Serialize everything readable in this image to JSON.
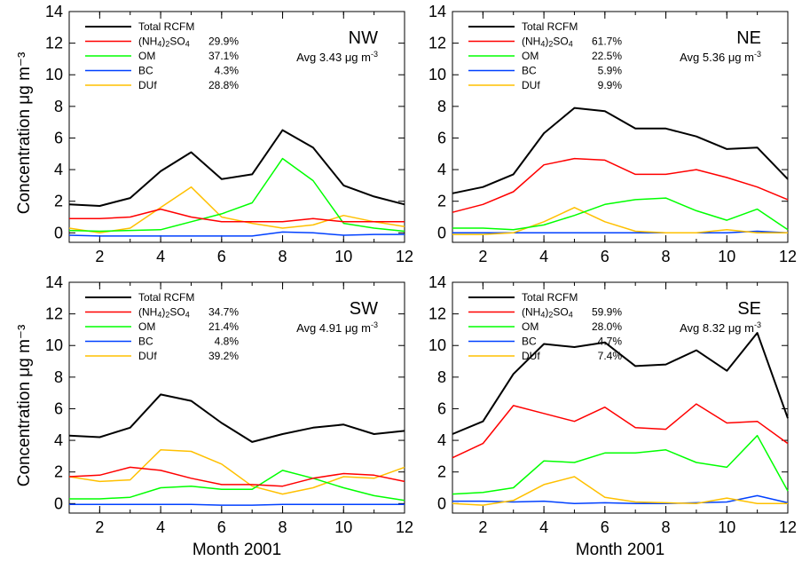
{
  "chart_data": {
    "type": "line",
    "ylabel": "Concentration μg m⁻³",
    "xlabel": "Month 2001",
    "xlim": [
      1,
      12
    ],
    "ylim": [
      0,
      14
    ],
    "x": [
      1,
      2,
      3,
      4,
      5,
      6,
      7,
      8,
      9,
      10,
      11,
      12
    ],
    "xticks": [
      "2",
      "4",
      "6",
      "8",
      "10",
      "12"
    ],
    "yticks": [
      "0",
      "2",
      "4",
      "6",
      "8",
      "10",
      "12",
      "14"
    ],
    "grid": false,
    "legend_placement": "top-left",
    "series_styles": [
      {
        "key": "total",
        "color": "#000000"
      },
      {
        "key": "nh4so4",
        "color": "#ff0000"
      },
      {
        "key": "om",
        "color": "#00ff00"
      },
      {
        "key": "bc",
        "color": "#0040ff"
      },
      {
        "key": "duf",
        "color": "#ffc000"
      }
    ],
    "panels": [
      {
        "region": "NW",
        "avg_label": "Avg 3.43 μg m",
        "avg_exp": "-3",
        "legend": [
          {
            "label": "Total RCFM",
            "pct": ""
          },
          {
            "label": "(NH4)2SO4",
            "pct": "29.9%"
          },
          {
            "label": "OM",
            "pct": "37.1%"
          },
          {
            "label": "BC",
            "pct": "4.3%"
          },
          {
            "label": "DUf",
            "pct": "28.8%"
          }
        ],
        "series": {
          "total": [
            1.8,
            1.7,
            2.2,
            3.9,
            5.1,
            3.4,
            3.7,
            6.5,
            5.4,
            3.0,
            2.3,
            1.8
          ],
          "nh4so4": [
            0.9,
            0.9,
            1.0,
            1.5,
            1.0,
            0.7,
            0.7,
            0.7,
            0.9,
            0.7,
            0.7,
            0.7
          ],
          "om": [
            0.15,
            0.1,
            0.15,
            0.2,
            0.7,
            1.2,
            1.9,
            4.7,
            3.3,
            0.6,
            0.3,
            0.1
          ],
          "bc": [
            -0.15,
            -0.2,
            -0.2,
            -0.2,
            -0.2,
            -0.2,
            -0.2,
            0.05,
            0.0,
            -0.15,
            -0.1,
            -0.1
          ],
          "duf": [
            0.3,
            0.0,
            0.3,
            1.6,
            2.9,
            1.0,
            0.6,
            0.3,
            0.5,
            1.1,
            0.7,
            0.4
          ]
        }
      },
      {
        "region": "NE",
        "avg_label": "Avg 5.36 μg m",
        "avg_exp": "-3",
        "legend": [
          {
            "label": "Total RCFM",
            "pct": ""
          },
          {
            "label": "(NH4)2SO4",
            "pct": "61.7%"
          },
          {
            "label": "OM",
            "pct": "22.5%"
          },
          {
            "label": "BC",
            "pct": "5.9%"
          },
          {
            "label": "DUf",
            "pct": "9.9%"
          }
        ],
        "series": {
          "total": [
            2.5,
            2.9,
            3.7,
            6.3,
            7.9,
            7.7,
            6.6,
            6.6,
            6.1,
            5.3,
            5.4,
            3.4
          ],
          "nh4so4": [
            1.3,
            1.8,
            2.6,
            4.3,
            4.7,
            4.6,
            3.7,
            3.7,
            4.0,
            3.5,
            2.9,
            2.1
          ],
          "om": [
            0.3,
            0.3,
            0.2,
            0.5,
            1.1,
            1.8,
            2.1,
            2.2,
            1.4,
            0.8,
            1.5,
            0.2
          ],
          "bc": [
            0.0,
            0.0,
            0.0,
            0.0,
            0.0,
            0.0,
            0.0,
            0.0,
            0.0,
            0.0,
            0.1,
            0.0
          ],
          "duf": [
            -0.1,
            -0.1,
            0.0,
            0.7,
            1.6,
            0.7,
            0.1,
            0.0,
            0.0,
            0.2,
            0.0,
            0.0
          ]
        }
      },
      {
        "region": "SW",
        "avg_label": "Avg 4.91 μg m",
        "avg_exp": "-3",
        "legend": [
          {
            "label": "Total RCFM",
            "pct": ""
          },
          {
            "label": "(NH4)2SO4",
            "pct": "34.7%"
          },
          {
            "label": "OM",
            "pct": "21.4%"
          },
          {
            "label": "BC",
            "pct": "4.8%"
          },
          {
            "label": "DUf",
            "pct": "39.2%"
          }
        ],
        "series": {
          "total": [
            4.3,
            4.2,
            4.8,
            6.9,
            6.5,
            5.1,
            3.9,
            4.4,
            4.8,
            5.0,
            4.4,
            4.6
          ],
          "nh4so4": [
            1.7,
            1.8,
            2.3,
            2.1,
            1.6,
            1.2,
            1.2,
            1.1,
            1.6,
            1.9,
            1.8,
            1.4
          ],
          "om": [
            0.3,
            0.3,
            0.4,
            1.0,
            1.1,
            0.9,
            0.9,
            2.1,
            1.6,
            1.0,
            0.5,
            0.2
          ],
          "bc": [
            -0.05,
            -0.05,
            -0.05,
            -0.05,
            -0.05,
            -0.1,
            -0.1,
            -0.05,
            -0.05,
            -0.05,
            -0.05,
            -0.05
          ],
          "duf": [
            1.7,
            1.4,
            1.5,
            3.4,
            3.3,
            2.5,
            1.1,
            0.6,
            1.0,
            1.7,
            1.6,
            2.3
          ]
        }
      },
      {
        "region": "SE",
        "avg_label": "Avg 8.32 μg m",
        "avg_exp": "-3",
        "legend": [
          {
            "label": "Total RCFM",
            "pct": ""
          },
          {
            "label": "(NH4)2SO4",
            "pct": "59.9%"
          },
          {
            "label": "OM",
            "pct": "28.0%"
          },
          {
            "label": "BC",
            "pct": "4.7%"
          },
          {
            "label": "DUf",
            "pct": "7.4%"
          }
        ],
        "series": {
          "total": [
            4.4,
            5.2,
            8.2,
            10.1,
            9.9,
            10.2,
            8.7,
            8.8,
            9.7,
            8.4,
            10.8,
            5.4
          ],
          "nh4so4": [
            2.9,
            3.8,
            6.2,
            5.7,
            5.2,
            6.1,
            4.8,
            4.7,
            6.3,
            5.1,
            5.2,
            3.8
          ],
          "om": [
            0.6,
            0.7,
            1.0,
            2.7,
            2.6,
            3.2,
            3.2,
            3.4,
            2.6,
            2.3,
            4.3,
            0.8
          ],
          "bc": [
            0.15,
            0.15,
            0.1,
            0.15,
            0.0,
            0.05,
            0.0,
            0.0,
            0.05,
            0.1,
            0.5,
            0.05
          ],
          "duf": [
            0.0,
            -0.1,
            0.2,
            1.2,
            1.7,
            0.4,
            0.1,
            0.05,
            0.0,
            0.35,
            0.0,
            0.0
          ]
        }
      }
    ]
  }
}
